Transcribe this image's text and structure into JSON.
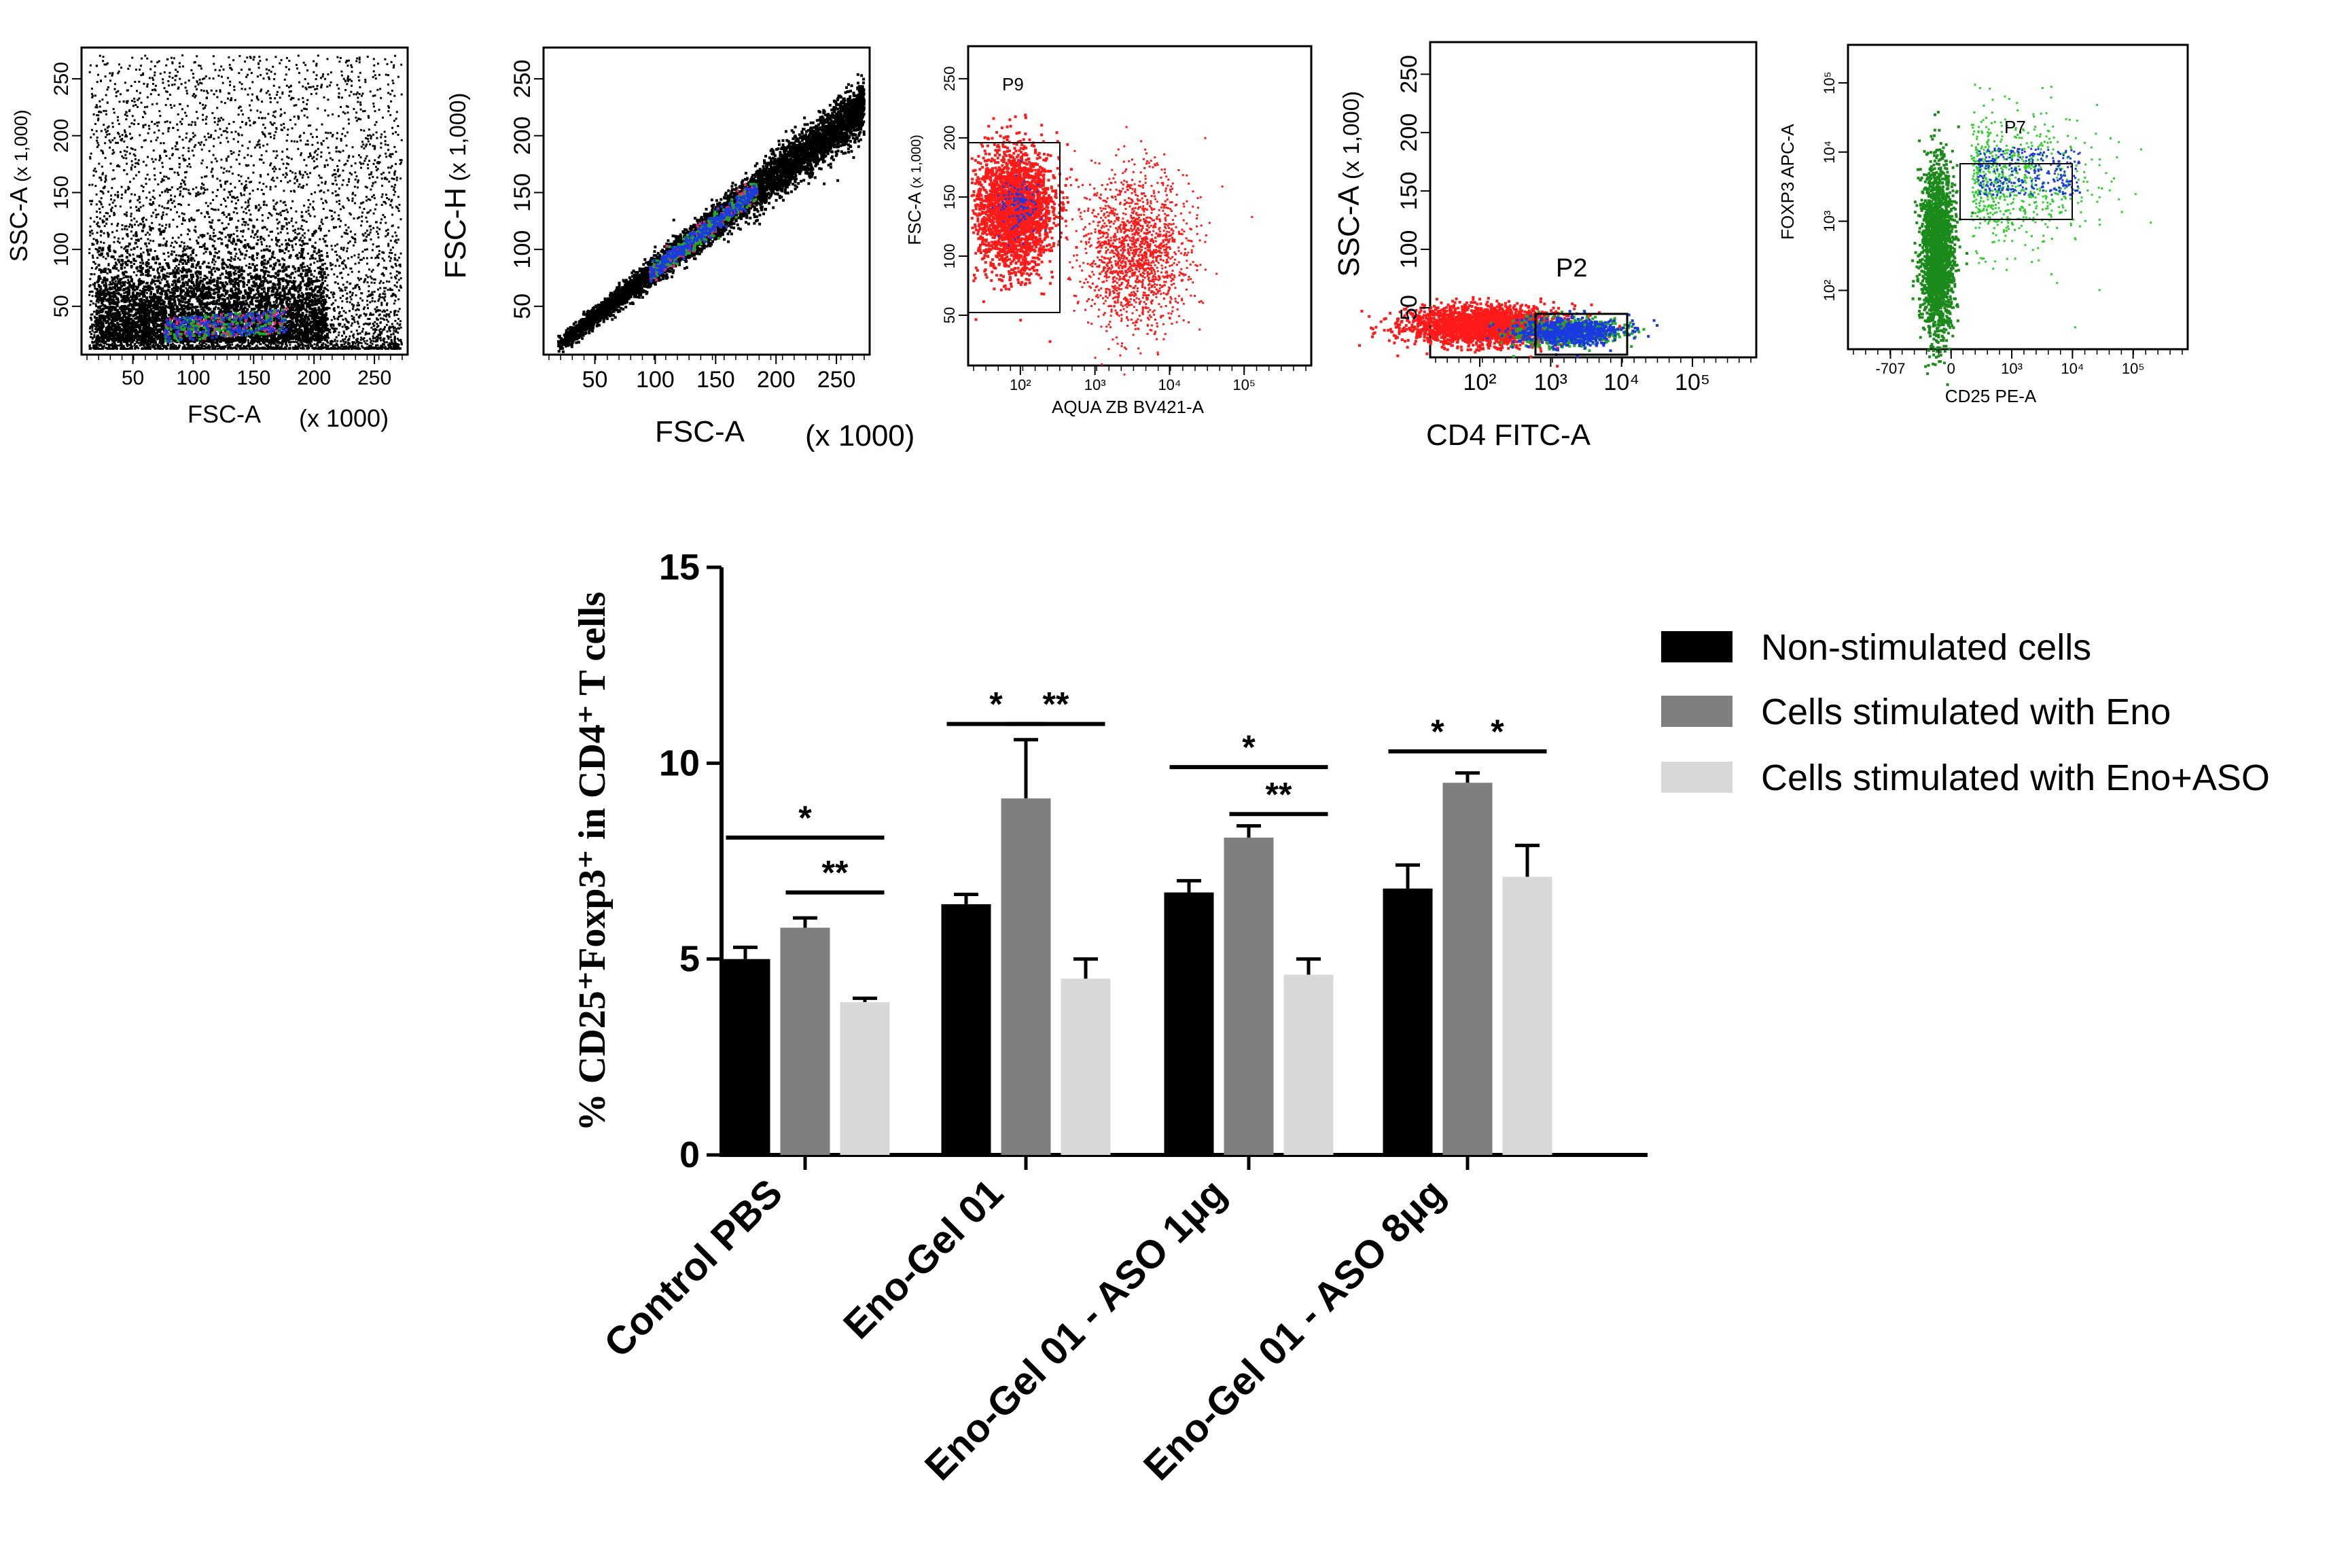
{
  "flow_panels": [
    {
      "id": "fsc-ssc",
      "x_label": "FSC-A",
      "x_unit": "(x 1000)",
      "y_label": "SSC-A",
      "y_unit": "(x 1,000)",
      "x_ticks": [
        "50",
        "100",
        "150",
        "200",
        "250"
      ],
      "y_ticks": [
        "50",
        "100",
        "150",
        "200",
        "250"
      ]
    },
    {
      "id": "fsc-singlets",
      "x_label": "FSC-A",
      "x_unit": "(x 1000)",
      "y_label": "FSC-H",
      "y_unit": "(x 1,000)",
      "x_ticks": [
        "50",
        "100",
        "150",
        "200",
        "250"
      ],
      "y_ticks": [
        "50",
        "100",
        "150",
        "200",
        "250"
      ]
    },
    {
      "id": "viability",
      "x_label": "AQUA ZB BV421-A",
      "y_label": "FSC-A",
      "y_unit": "(x 1,000)",
      "gate": "P9",
      "x_ticks": [
        "10²",
        "10³",
        "10⁴",
        "10⁵"
      ],
      "y_ticks": [
        "50",
        "100",
        "150",
        "200",
        "250"
      ]
    },
    {
      "id": "cd4",
      "x_label": "CD4 FITC-A",
      "y_label": "SSC-A",
      "y_unit": "(x 1,000)",
      "gate": "P2",
      "x_ticks": [
        "10²",
        "10³",
        "10⁴",
        "10⁵"
      ],
      "y_ticks": [
        "50",
        "100",
        "150",
        "200",
        "250"
      ]
    },
    {
      "id": "treg",
      "x_label": "CD25 PE-A",
      "y_label": "FOXP3 APC-A",
      "gate": "P7",
      "x_ticks": [
        "-707",
        "0",
        "10³",
        "10⁴",
        "10⁵"
      ],
      "y_ticks": [
        "10²",
        "10³",
        "10⁴",
        "10⁵"
      ]
    }
  ],
  "chart_data": {
    "type": "bar",
    "title": "",
    "ylabel": "% CD25⁺Foxp3⁺ in CD4⁺ T cells",
    "xlabel": "",
    "ylim": [
      0,
      15
    ],
    "yticks": [
      0,
      5,
      10,
      15
    ],
    "categories": [
      "Control PBS",
      "Eno-Gel 01",
      "Eno-Gel 01 - ASO 1μg",
      "Eno-Gel 01 - ASO 8μg"
    ],
    "series": [
      {
        "name": "Non-stimulated cells",
        "color": "#000000",
        "values": [
          5.0,
          6.4,
          6.7,
          6.8
        ],
        "errors": [
          0.3,
          0.25,
          0.3,
          0.6
        ]
      },
      {
        "name": "Cells stimulated with Eno",
        "color": "#7f7f7f",
        "values": [
          5.8,
          9.1,
          8.1,
          9.5
        ],
        "errors": [
          0.25,
          1.5,
          0.3,
          0.25
        ]
      },
      {
        "name": "Cells stimulated with Eno+ASO",
        "color": "#d8d8d8",
        "values": [
          3.9,
          4.5,
          4.6,
          7.1
        ],
        "errors": [
          0.1,
          0.5,
          0.4,
          0.8
        ]
      }
    ],
    "significance": [
      {
        "group": 0,
        "from": 0,
        "to": 2,
        "label": "*",
        "y": 8.1
      },
      {
        "group": 0,
        "from": 1,
        "to": 2,
        "label": "**",
        "y": 6.7
      },
      {
        "group": 1,
        "from": 0,
        "to": 1,
        "label": "*",
        "y": 11.0
      },
      {
        "group": 1,
        "from": 1,
        "to": 2,
        "label": "**",
        "y": 11.0
      },
      {
        "group": 2,
        "from": 0,
        "to": 2,
        "label": "*",
        "y": 9.9
      },
      {
        "group": 2,
        "from": 1,
        "to": 2,
        "label": "**",
        "y": 8.7
      },
      {
        "group": 3,
        "from": 0,
        "to": 1,
        "label": "*",
        "y": 10.3
      },
      {
        "group": 3,
        "from": 1,
        "to": 2,
        "label": "*",
        "y": 10.3
      }
    ],
    "legend_position": "right"
  }
}
